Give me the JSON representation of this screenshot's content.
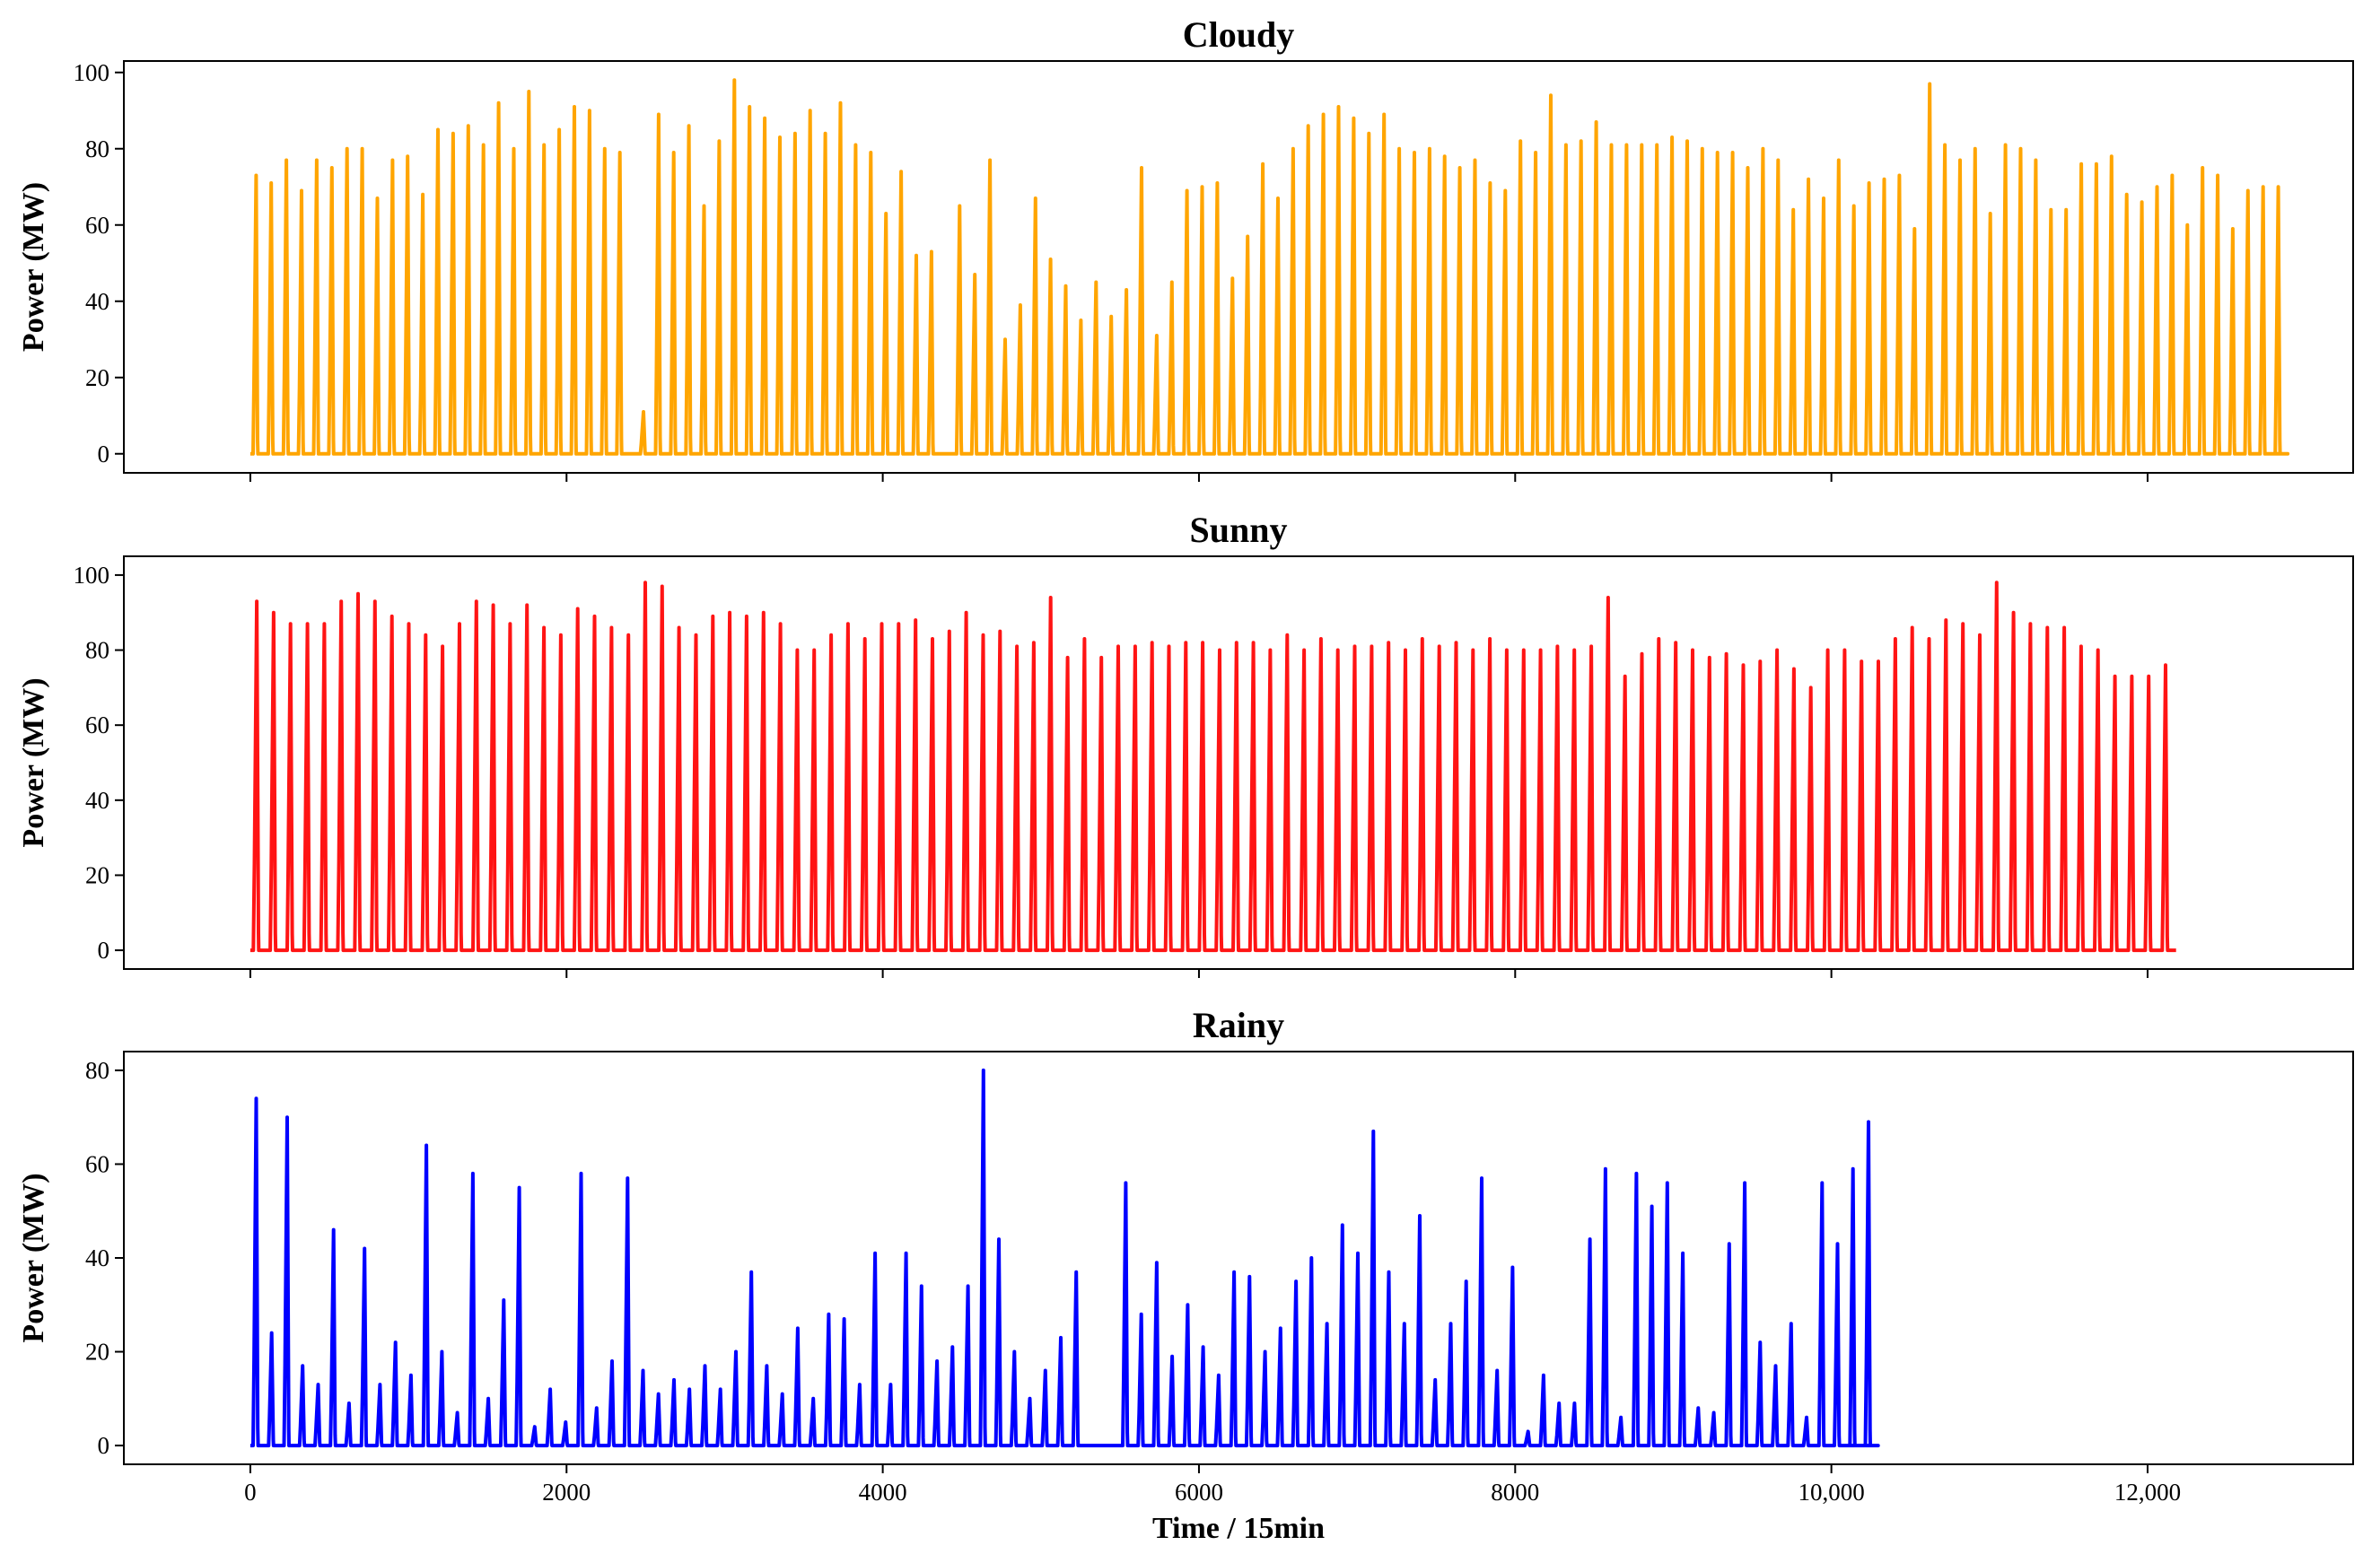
{
  "chart_data": [
    {
      "type": "line",
      "title": "Cloudy",
      "ylabel": "Power (MW)",
      "xlabel": "",
      "color": "#FFA500",
      "xlim": [
        -800,
        13300
      ],
      "ylim": [
        -5,
        103
      ],
      "yticks": [
        0,
        20,
        40,
        60,
        80,
        100
      ],
      "xticks": [
        0,
        2000,
        4000,
        6000,
        8000,
        10000,
        12000
      ],
      "xtick_labels_visible": false,
      "x_end": 12750,
      "samples_per_day": 96,
      "gaps": [
        [
          2350,
          2450
        ],
        [
          4320,
          4450
        ]
      ],
      "daily_peaks": [
        73,
        71,
        77,
        69,
        77,
        75,
        80,
        80,
        67,
        77,
        78,
        68,
        85,
        84,
        86,
        81,
        92,
        80,
        95,
        81,
        85,
        91,
        90,
        80,
        79,
        11,
        89,
        79,
        86,
        65,
        82,
        98,
        91,
        88,
        83,
        84,
        90,
        84,
        92,
        81,
        79,
        63,
        74,
        52,
        53,
        65,
        47,
        77,
        30,
        39,
        67,
        51,
        44,
        35,
        45,
        36,
        43,
        75,
        31,
        45,
        69,
        70,
        71,
        46,
        57,
        76,
        67,
        80,
        86,
        89,
        91,
        88,
        84,
        89,
        80,
        79,
        80,
        78,
        75,
        77,
        71,
        69,
        82,
        79,
        94,
        81,
        82,
        87,
        81,
        81,
        81,
        81,
        83,
        82,
        80,
        79,
        79,
        75,
        80,
        77,
        64,
        72,
        67,
        77,
        65,
        71,
        72,
        73,
        59,
        97,
        81,
        77,
        80,
        63,
        81,
        80,
        77,
        64,
        64,
        76,
        76,
        78,
        68,
        66,
        70,
        73,
        60,
        75,
        73,
        59,
        69,
        70,
        70
      ],
      "grid": false
    },
    {
      "type": "line",
      "title": "Sunny",
      "ylabel": "Power (MW)",
      "xlabel": "",
      "color": "#FF1414",
      "xlim": [
        -800,
        13300
      ],
      "ylim": [
        -5,
        105
      ],
      "yticks": [
        0,
        20,
        40,
        60,
        80,
        100
      ],
      "xticks": [
        0,
        2000,
        4000,
        6000,
        8000,
        10000,
        12000
      ],
      "xtick_labels_visible": false,
      "x_end": 12180,
      "samples_per_day": 96,
      "gaps": [],
      "daily_peaks": [
        93,
        90,
        87,
        87,
        87,
        93,
        95,
        93,
        89,
        87,
        84,
        81,
        87,
        93,
        92,
        87,
        92,
        86,
        84,
        91,
        89,
        86,
        84,
        98,
        97,
        86,
        84,
        89,
        90,
        89,
        90,
        87,
        80,
        80,
        84,
        87,
        83,
        87,
        87,
        88,
        83,
        85,
        90,
        84,
        85,
        81,
        82,
        94,
        78,
        83,
        78,
        81,
        81,
        82,
        81,
        82,
        82,
        80,
        82,
        82,
        80,
        84,
        80,
        83,
        80,
        81,
        81,
        82,
        80,
        83,
        81,
        82,
        80,
        83,
        80,
        80,
        80,
        81,
        80,
        81,
        94,
        73,
        79,
        83,
        82,
        80,
        78,
        79,
        76,
        77,
        80,
        75,
        70,
        80,
        80,
        77,
        77,
        83,
        86,
        83,
        88,
        87,
        84,
        98,
        90,
        87,
        86,
        86,
        81,
        80,
        73,
        73,
        73,
        76
      ],
      "grid": false
    },
    {
      "type": "line",
      "title": "Rainy",
      "ylabel": "Power (MW)",
      "xlabel": "Time / 15min",
      "color": "#0000FF",
      "xlim": [
        -800,
        13300
      ],
      "ylim": [
        -4,
        84
      ],
      "yticks": [
        0,
        20,
        40,
        60,
        80
      ],
      "xticks": [
        0,
        2000,
        4000,
        6000,
        8000,
        10000,
        12000
      ],
      "xtick_labels": [
        "0",
        "2000",
        "4000",
        "6000",
        "8000",
        "10,000",
        "12,000"
      ],
      "x_end": 10080,
      "samples_per_day": 96,
      "gaps": [
        [
          5270,
          5500
        ]
      ],
      "daily_peaks": [
        74,
        24,
        70,
        17,
        13,
        46,
        9,
        42,
        13,
        22,
        15,
        64,
        20,
        7,
        58,
        10,
        31,
        55,
        4,
        12,
        5,
        58,
        8,
        18,
        57,
        16,
        11,
        14,
        12,
        17,
        12,
        20,
        37,
        17,
        11,
        25,
        10,
        28,
        27,
        13,
        41,
        13,
        41,
        34,
        18,
        21,
        34,
        80,
        44,
        20,
        10,
        16,
        23,
        37,
        56,
        28,
        39,
        19,
        30,
        21,
        15,
        37,
        36,
        20,
        25,
        35,
        40,
        26,
        47,
        41,
        67,
        37,
        26,
        49,
        14,
        26,
        35,
        57,
        16,
        38,
        3,
        15,
        9,
        9,
        44,
        59,
        6,
        58,
        51,
        56,
        41,
        8,
        7,
        43,
        56,
        22,
        17,
        26,
        6,
        56,
        43,
        59,
        69
      ],
      "grid": false
    }
  ]
}
